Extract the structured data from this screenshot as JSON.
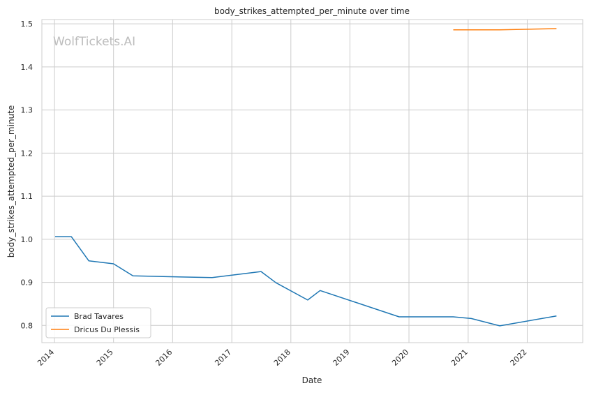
{
  "chart_data": {
    "type": "line",
    "title": "body_strikes_attempted_per_minute over time",
    "xlabel": "Date",
    "ylabel": "body_strikes_attempted_per_minute",
    "watermark": "WolfTickets.AI",
    "grid": true,
    "legend_position": "bottom-left",
    "x_ticks": [
      "2014",
      "2015",
      "2016",
      "2017",
      "2018",
      "2019",
      "2020",
      "2021",
      "2022"
    ],
    "y_ticks": [
      "0.8",
      "0.9",
      "1.0",
      "1.1",
      "1.2",
      "1.3",
      "1.4",
      "1.5"
    ],
    "xlim": [
      "2013-10-15",
      "2022-12-10"
    ],
    "ylim": [
      0.76,
      1.51
    ],
    "series": [
      {
        "name": "Brad Tavares",
        "color": "#1f77b4",
        "points": [
          [
            "2014-01-05",
            1.006
          ],
          [
            "2014-04-15",
            1.006
          ],
          [
            "2014-08-01",
            0.95
          ],
          [
            "2015-01-01",
            0.943
          ],
          [
            "2015-05-01",
            0.915
          ],
          [
            "2016-09-01",
            0.911
          ],
          [
            "2017-07-01",
            0.925
          ],
          [
            "2017-10-01",
            0.899
          ],
          [
            "2018-04-15",
            0.859
          ],
          [
            "2018-07-01",
            0.881
          ],
          [
            "2019-11-01",
            0.82
          ],
          [
            "2020-10-01",
            0.82
          ],
          [
            "2021-01-20",
            0.816
          ],
          [
            "2021-07-15",
            0.799
          ],
          [
            "2022-07-01",
            0.822
          ]
        ]
      },
      {
        "name": "Dricus Du Plessis",
        "color": "#ff7f0e",
        "points": [
          [
            "2020-10-01",
            1.486
          ],
          [
            "2021-07-15",
            1.486
          ],
          [
            "2022-07-01",
            1.489
          ]
        ]
      }
    ]
  }
}
